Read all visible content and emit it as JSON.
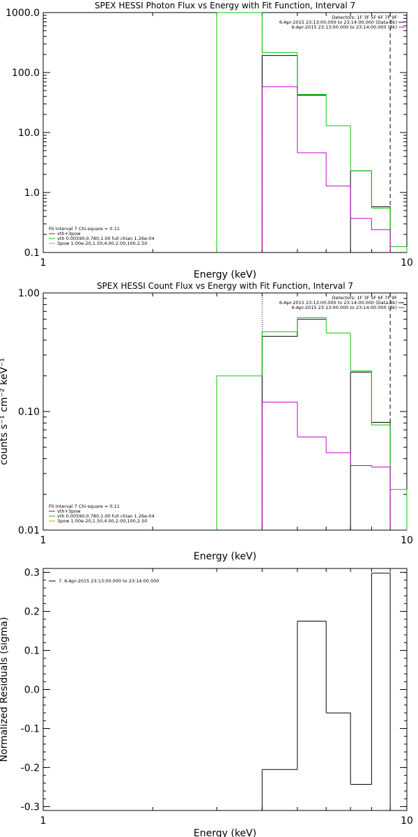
{
  "chart_data": [
    {
      "type": "line",
      "title": "SPEX HESSI Photon Flux vs Energy with Fit Function, Interval 7",
      "xlabel": "Energy (keV)",
      "ylabel": "",
      "xscale": "log",
      "yscale": "log",
      "xlim": [
        1,
        10
      ],
      "ylim": [
        0.1,
        1000
      ],
      "xticks": [
        {
          "v": 1,
          "label": "1"
        },
        {
          "v": 10,
          "label": "10"
        }
      ],
      "yticks": [
        {
          "v": 0.1,
          "label": "0.1"
        },
        {
          "v": 1,
          "label": "1.0"
        },
        {
          "v": 10,
          "label": "10.0"
        },
        {
          "v": 100,
          "label": "100.0"
        },
        {
          "v": 1000,
          "label": "1000.0"
        }
      ],
      "legend_tr": [
        "Detectors: 1F 3F 5F 6F 7F 9F",
        "6-Apr-2015 23:13:00.000 to 23:14:00.000 (Data-Bk)",
        "6-Apr-2015 23:13:00.000 to 23:14:00.000 (Bk)"
      ],
      "legend_tr_colors": [
        "",
        "#000000",
        "#cc00cc"
      ],
      "legend_bl_header": "Fit Interval 7   Chi-square = 0.11",
      "legend_bl": [
        {
          "text": "vth+3pow",
          "color": "#cc0000"
        },
        {
          "text": "vth 0.00590,0.780,1.00  full chian 1.26e-04",
          "color": "#00cc00"
        },
        {
          "text": "3pow 1.00e-20,1.50,4.00,2.00,100,2.50",
          "color": "#ccaa00"
        }
      ],
      "markers": [
        {
          "x": 4.0,
          "style": "dotted",
          "color": "#000000"
        },
        {
          "x": 9.0,
          "style": "dashed",
          "color": "#000000"
        }
      ],
      "series": [
        {
          "name": "vth+3pow",
          "color": "#000000",
          "steps": [
            [
              4,
              5,
              192
            ],
            [
              5,
              6,
              42
            ],
            [
              6,
              7,
              null
            ],
            [
              7,
              8,
              2.3
            ],
            [
              8,
              9,
              0.58
            ]
          ]
        },
        {
          "name": "vth 0.00590,0.780,1.00  full chian 1.26e-04",
          "color": "#00cc00",
          "steps": [
            [
              3,
              4,
              2000
            ],
            [
              4,
              5,
              215
            ],
            [
              5,
              6,
              43
            ],
            [
              6,
              7,
              13
            ],
            [
              7,
              8,
              2.3
            ],
            [
              8,
              9,
              0.55
            ],
            [
              9,
              10,
              0.125
            ]
          ]
        },
        {
          "name": "6-Apr-2015 23:13:00.000 to 23:14:00.000 (Bk)",
          "color": "#cc00cc",
          "steps": [
            [
              4,
              5,
              58
            ],
            [
              5,
              6,
              4.6
            ],
            [
              6,
              7,
              1.28
            ],
            [
              7,
              8,
              0.37
            ],
            [
              8,
              9,
              0.24
            ]
          ]
        }
      ]
    },
    {
      "type": "line",
      "title": "SPEX HESSI Count Flux vs Energy with Fit Function, Interval 7",
      "xlabel": "Energy (keV)",
      "ylabel": "counts s⁻¹ cm⁻² keV⁻¹",
      "xscale": "log",
      "yscale": "log",
      "xlim": [
        1,
        10
      ],
      "ylim": [
        0.01,
        1.0
      ],
      "xticks": [
        {
          "v": 1,
          "label": "1"
        },
        {
          "v": 10,
          "label": "10"
        }
      ],
      "yticks": [
        {
          "v": 0.01,
          "label": "0.01"
        },
        {
          "v": 0.1,
          "label": "0.10"
        },
        {
          "v": 1,
          "label": "1.00"
        }
      ],
      "legend_tr": [
        "Detectors: 1F 3F 5F 6F 7F 9F",
        "6-Apr-2015 23:13:00.000 to 23:14:00.000 (Data-Bk)",
        "6-Apr-2015 23:13:00.000 to 23:14:00.000 (Bk)"
      ],
      "legend_tr_colors": [
        "",
        "#000000",
        "#cc00cc"
      ],
      "legend_bl_header": "Fit Interval 7   Chi-square = 0.11",
      "legend_bl": [
        {
          "text": "vth+3pow",
          "color": "#cc0000"
        },
        {
          "text": "vth 0.00590,0.780,1.00  full chian 1.26e-04",
          "color": "#00cc00"
        },
        {
          "text": "3pow 1.00e-20,1.50,4.00,2.00,100,2.50",
          "color": "#ccaa00"
        }
      ],
      "markers": [
        {
          "x": 4.0,
          "style": "dotted",
          "color": "#000000"
        },
        {
          "x": 9.0,
          "style": "dashed",
          "color": "#000000"
        }
      ],
      "series": [
        {
          "name": "vth+3pow",
          "color": "#000000",
          "steps": [
            [
              4,
              5,
              0.43
            ],
            [
              5,
              6,
              0.6
            ],
            [
              6,
              7,
              null
            ],
            [
              7,
              8,
              0.215
            ],
            [
              8,
              9,
              0.081
            ]
          ]
        },
        {
          "name": "vth 0.00590,0.780,1.00  full chian 1.26e-04",
          "color": "#00cc00",
          "steps": [
            [
              3,
              4,
              0.2
            ],
            [
              4,
              5,
              0.47
            ],
            [
              5,
              6,
              0.62
            ],
            [
              6,
              7,
              0.46
            ],
            [
              7,
              8,
              0.22
            ],
            [
              8,
              9,
              0.077
            ],
            [
              9,
              10,
              0.022
            ]
          ]
        },
        {
          "name": "6-Apr-2015 23:13:00.000 to 23:14:00.000 (Bk)",
          "color": "#cc00cc",
          "steps": [
            [
              4,
              5,
              0.12
            ],
            [
              5,
              6,
              0.061
            ],
            [
              6,
              7,
              0.045
            ],
            [
              7,
              8,
              0.035
            ],
            [
              8,
              9,
              0.034
            ]
          ]
        }
      ]
    },
    {
      "type": "line",
      "title": "",
      "xlabel": "Energy (keV)",
      "ylabel": "Normalized Residuals (sigma)",
      "xscale": "log",
      "yscale": "linear",
      "xlim": [
        1,
        10
      ],
      "ylim": [
        -0.31,
        0.31
      ],
      "xticks": [
        {
          "v": 1,
          "label": "1"
        },
        {
          "v": 10,
          "label": "10"
        }
      ],
      "yticks": [
        {
          "v": -0.3,
          "label": "-0.3"
        },
        {
          "v": -0.2,
          "label": "-0.2"
        },
        {
          "v": -0.1,
          "label": "-0.1"
        },
        {
          "v": 0,
          "label": "0.0"
        },
        {
          "v": 0.1,
          "label": "0.1"
        },
        {
          "v": 0.2,
          "label": "0.2"
        },
        {
          "v": 0.3,
          "label": "0.3"
        }
      ],
      "legend_tl": "7.  6-Apr-2015 23:13:00.000 to 23:14:00.000",
      "series": [
        {
          "name": "7.  6-Apr-2015 23:13:00.000 to 23:14:00.000",
          "color": "#000000",
          "steps": [
            [
              4,
              5,
              -0.205
            ],
            [
              5,
              6,
              0.175
            ],
            [
              6,
              7,
              -0.06
            ],
            [
              7,
              8,
              -0.243
            ],
            [
              8,
              9,
              0.298
            ]
          ]
        }
      ]
    }
  ]
}
